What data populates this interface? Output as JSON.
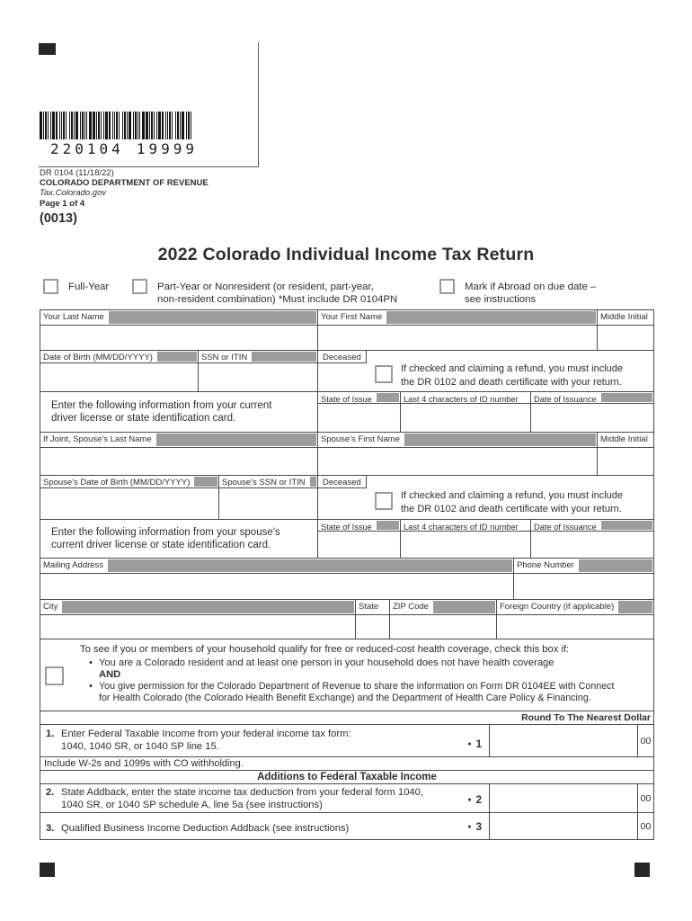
{
  "page": {
    "barcode_left": "220104",
    "barcode_right": "19999",
    "form_code": "DR 0104 (11/18/22)",
    "department": "COLORADO DEPARTMENT OF REVENUE",
    "website": "Tax.Colorado.gov",
    "page_label": "Page 1 of 4",
    "form_id": "(0013)",
    "title": "2022 Colorado Individual Income Tax Return"
  },
  "colors": {
    "header_fill": "#9c9c9c",
    "border": "#4a4a4a",
    "ink": "#2e2e2e"
  },
  "residency": {
    "full_year_label": "Full-Year",
    "part_year_label": "Part-Year or Nonresident (or resident, part-year,\nnon-resident combination) *Must include DR 0104PN",
    "abroad_label": "Mark if Abroad on due date –\nsee instructions"
  },
  "taxpayer": {
    "last_name_label": "Your Last Name",
    "first_name_label": "Your First Name",
    "middle_initial_label": "Middle Initial",
    "dob_label": "Date of Birth (MM/DD/YYYY)",
    "ssn_label": "SSN or ITIN",
    "deceased_label": "Deceased",
    "deceased_note": "If checked and claiming a refund, you must include\nthe DR 0102 and death certificate with your return.",
    "license_prompt": "Enter the following information from your current\ndriver license or state identification card.",
    "state_of_issue_label": "State of Issue",
    "id_last4_label": "Last 4 characters of ID number",
    "issuance_label": "Date of Issuance"
  },
  "spouse": {
    "last_name_label": "If Joint, Spouse's Last Name",
    "first_name_label": "Spouse's First Name",
    "middle_initial_label": "Middle Initial",
    "dob_label": "Spouse's Date of Birth (MM/DD/YYYY)",
    "ssn_label": "Spouse's SSN or ITIN",
    "deceased_label": "Deceased",
    "deceased_note": "If checked and claiming a refund, you must include\nthe DR 0102 and death certificate with your return.",
    "license_prompt": "Enter the following information from your spouse's\ncurrent driver license or state identification card.",
    "state_of_issue_label": "State of Issue",
    "id_last4_label": "Last 4 characters of ID number",
    "issuance_label": "Date of Issuance"
  },
  "address": {
    "mailing_label": "Mailing Address",
    "phone_label": "Phone Number",
    "city_label": "City",
    "state_label": "State",
    "zip_label": "ZIP Code",
    "foreign_label": "Foreign Country (if applicable)"
  },
  "health": {
    "intro": "To see if you or members of your household qualify for free or reduced-cost health coverage, check this box if:",
    "bullet": "•",
    "item1": "You are a Colorado resident and at least one person in your household does not have health coverage",
    "conjunction": "AND",
    "item2": "You give permission for the Colorado Department of Revenue to share the information on Form DR 0104EE with Connect\nfor Health Colorado (the Colorado Health Benefit Exchange) and the Department of Health Care Policy & Financing."
  },
  "amounts": {
    "round_note": "Round To The Nearest Dollar",
    "include_note": "Include W-2s and 1099s with CO withholding.",
    "section_header": "Additions to Federal Taxable Income",
    "dot": "●",
    "lines": [
      {
        "num": "1.",
        "ref": "1",
        "text": "Enter Federal Taxable Income from your federal income tax form:\n1040, 1040 SR, or 1040 SP line 15.",
        "cents": "00"
      },
      {
        "num": "2.",
        "ref": "2",
        "text": "State Addback, enter the state income tax deduction from your federal form 1040,\n1040 SR, or 1040 SP schedule A, line 5a (see instructions)",
        "cents": "00"
      },
      {
        "num": "3.",
        "ref": "3",
        "text": "Qualified Business Income Deduction Addback (see instructions)",
        "cents": "00"
      }
    ]
  }
}
